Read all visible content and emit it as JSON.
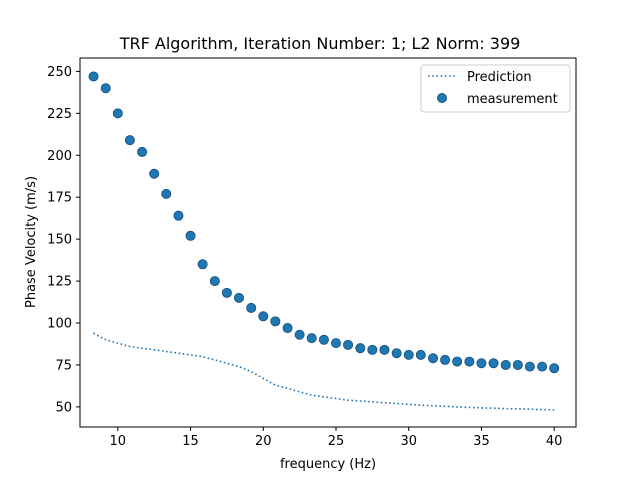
{
  "chart_data": {
    "type": "scatter",
    "title": "TRF Algorithm, Iteration Number: 1; L2 Norm: 399",
    "xlabel": "frequency (Hz)",
    "ylabel": "Phase Velocity (m/s)",
    "xlim": [
      7.4,
      41.5
    ],
    "ylim": [
      38,
      258
    ],
    "xticks": [
      10,
      15,
      20,
      25,
      30,
      35,
      40
    ],
    "xtick_labels": [
      "10",
      "15",
      "20",
      "25",
      "30",
      "35",
      "40"
    ],
    "yticks": [
      50,
      75,
      100,
      125,
      150,
      175,
      200,
      225,
      250
    ],
    "ytick_labels": [
      "50",
      "75",
      "100",
      "125",
      "150",
      "175",
      "200",
      "225",
      "250"
    ],
    "grid": false,
    "legend_position": "top-right",
    "colors": {
      "series": "#1f77b4"
    },
    "series": [
      {
        "name": "Prediction",
        "style": "dotted-line",
        "x": [
          8.33,
          9.17,
          10.0,
          10.83,
          11.67,
          12.5,
          13.33,
          14.17,
          15.0,
          15.83,
          16.67,
          17.5,
          18.33,
          19.17,
          20.0,
          20.83,
          21.67,
          22.5,
          23.33,
          24.17,
          25.0,
          25.83,
          26.67,
          27.5,
          28.33,
          29.17,
          30.0,
          30.83,
          31.67,
          32.5,
          33.33,
          34.17,
          35.0,
          35.83,
          36.67,
          37.5,
          38.33,
          39.17,
          40.0
        ],
        "y": [
          94,
          90,
          88,
          86,
          85,
          84,
          83,
          82,
          81,
          80,
          78,
          76,
          74,
          71,
          67,
          63,
          61,
          59,
          57,
          56,
          55,
          54,
          53.5,
          53,
          52.5,
          52,
          51.5,
          51,
          50.7,
          50.3,
          50,
          49.7,
          49.4,
          49.2,
          49,
          48.8,
          48.6,
          48.4,
          48.2
        ]
      },
      {
        "name": "measurement",
        "style": "markers",
        "x": [
          8.33,
          9.17,
          10.0,
          10.83,
          11.67,
          12.5,
          13.33,
          14.17,
          15.0,
          15.83,
          16.67,
          17.5,
          18.33,
          19.17,
          20.0,
          20.83,
          21.67,
          22.5,
          23.33,
          24.17,
          25.0,
          25.83,
          26.67,
          27.5,
          28.33,
          29.17,
          30.0,
          30.83,
          31.67,
          32.5,
          33.33,
          34.17,
          35.0,
          35.83,
          36.67,
          37.5,
          38.33,
          39.17,
          40.0
        ],
        "y": [
          247,
          240,
          225,
          209,
          202,
          189,
          177,
          164,
          152,
          135,
          125,
          118,
          115,
          109,
          104,
          101,
          97,
          93,
          91,
          90,
          88,
          87,
          85,
          84,
          84,
          82,
          81,
          81,
          79,
          78,
          77,
          77,
          76,
          76,
          75,
          75,
          74,
          74,
          73
        ]
      }
    ]
  }
}
